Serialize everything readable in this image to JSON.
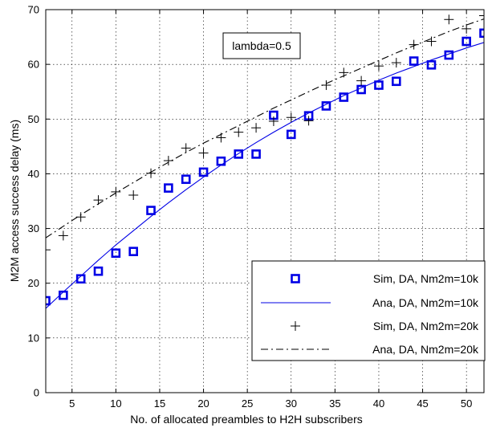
{
  "chart_data": {
    "type": "line",
    "xlabel": "No. of allocated preambles to H2H subscribers",
    "ylabel": "M2M access success delay (ms)",
    "xlim": [
      2,
      52
    ],
    "ylim": [
      0,
      70
    ],
    "xticks": [
      5,
      10,
      15,
      20,
      25,
      30,
      35,
      40,
      45,
      50
    ],
    "yticks": [
      0,
      10,
      20,
      30,
      40,
      50,
      60,
      70
    ],
    "grid": true,
    "legend_position": "bottom-right",
    "annotation": "lambda=0.5",
    "colors": {
      "blue": "#0000e6",
      "black": "#000000"
    },
    "series": [
      {
        "name": "Sim, DA, Nm2m=10k",
        "style": "markers-square",
        "color": "#0000e6",
        "x": [
          2,
          4,
          6,
          8,
          10,
          12,
          14,
          16,
          18,
          20,
          22,
          24,
          26,
          28,
          30,
          32,
          34,
          36,
          38,
          40,
          42,
          44,
          46,
          48,
          50,
          52
        ],
        "values": [
          16.8,
          17.8,
          20.8,
          22.2,
          25.5,
          25.8,
          33.3,
          37.4,
          39.0,
          40.3,
          42.3,
          43.6,
          43.6,
          50.7,
          47.2,
          50.6,
          52.4,
          54.0,
          55.4,
          56.2,
          56.9,
          60.6,
          59.9,
          61.7,
          64.2,
          65.7
        ]
      },
      {
        "name": "Ana, DA, Nm2m=10k",
        "style": "line-solid",
        "color": "#0000e6",
        "x": [
          2,
          4,
          6,
          8,
          10,
          12,
          14,
          16,
          18,
          20,
          22,
          24,
          26,
          28,
          30,
          32,
          34,
          36,
          38,
          40,
          42,
          44,
          46,
          48,
          50,
          52
        ],
        "values": [
          15.4,
          18.4,
          21.3,
          24.2,
          27.0,
          29.6,
          32.2,
          34.7,
          37.1,
          39.4,
          41.6,
          43.7,
          45.7,
          47.6,
          49.4,
          51.1,
          52.7,
          54.3,
          55.7,
          57.1,
          58.4,
          59.6,
          60.8,
          61.9,
          63.0,
          64.0
        ]
      },
      {
        "name": "Sim, DA, Nm2m=20k",
        "style": "markers-plus",
        "color": "#000000",
        "x": [
          2,
          4,
          6,
          8,
          10,
          12,
          14,
          16,
          18,
          20,
          22,
          24,
          26,
          28,
          30,
          32,
          34,
          36,
          38,
          40,
          42,
          44,
          46,
          48,
          50,
          52
        ],
        "values": [
          26.1,
          28.7,
          32.1,
          35.2,
          36.7,
          36.1,
          40.1,
          42.4,
          44.7,
          43.8,
          46.6,
          47.6,
          48.4,
          49.6,
          50.3,
          49.7,
          56.2,
          58.5,
          57.0,
          59.7,
          60.3,
          63.6,
          64.2,
          68.2,
          66.5,
          68.9
        ]
      },
      {
        "name": "Ana, DA, Nm2m=20k",
        "style": "line-dashdot",
        "color": "#000000",
        "x": [
          2,
          4,
          6,
          8,
          10,
          12,
          14,
          16,
          18,
          20,
          22,
          24,
          26,
          28,
          30,
          32,
          34,
          36,
          38,
          40,
          42,
          44,
          46,
          48,
          50,
          52
        ],
        "values": [
          28.3,
          30.4,
          32.5,
          34.5,
          36.5,
          38.4,
          40.3,
          42.1,
          43.9,
          45.6,
          47.2,
          48.8,
          50.4,
          52.0,
          53.5,
          55.0,
          56.5,
          57.9,
          59.3,
          60.7,
          62.1,
          63.4,
          64.7,
          66.0,
          67.2,
          68.3
        ]
      }
    ]
  }
}
